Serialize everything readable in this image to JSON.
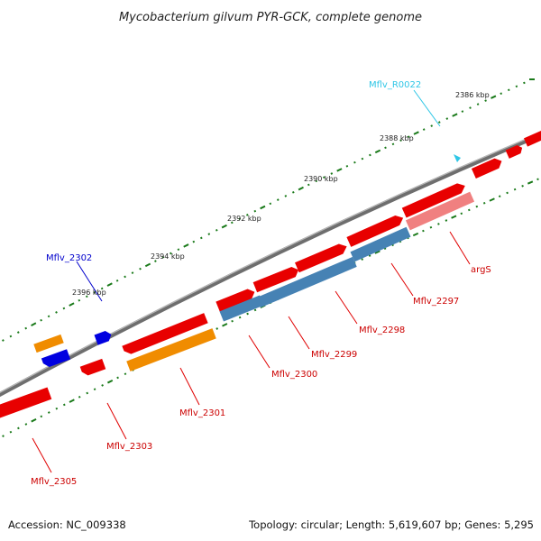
{
  "title": "Mycobacterium gilvum PYR-GCK, complete genome",
  "footer": {
    "accession": "Accession: NC_009338",
    "topology": "Topology: circular; Length: 5,619,607 bp; Genes: 5,295"
  },
  "scale_labels": [
    "2386 kbp",
    "2388 kbp",
    "2390 kbp",
    "2392 kbp",
    "2394 kbp",
    "2396 kbp"
  ],
  "gene_labels": [
    {
      "text": "Mflv_R0022",
      "color": "#2ec6e6"
    },
    {
      "text": "Mflv_2302",
      "color": "#0000cc"
    },
    {
      "text": "argS",
      "color": "#cc0000"
    },
    {
      "text": "Mflv_2297",
      "color": "#cc0000"
    },
    {
      "text": "Mflv_2298",
      "color": "#cc0000"
    },
    {
      "text": "Mflv_2299",
      "color": "#cc0000"
    },
    {
      "text": "Mflv_2300",
      "color": "#cc0000"
    },
    {
      "text": "Mflv_2301",
      "color": "#cc0000"
    },
    {
      "text": "Mflv_2303",
      "color": "#cc0000"
    },
    {
      "text": "Mflv_2305",
      "color": "#cc0000"
    }
  ],
  "colors": {
    "cds": "#e80000",
    "rna": "#2ec6e6",
    "blue_feature": "#0000e0",
    "orange_feature": "#f08c00",
    "steelblue_feature": "#4682b4",
    "pink_feature": "#f08080",
    "backbone": "#808080",
    "tick": "#1a7a1a"
  }
}
